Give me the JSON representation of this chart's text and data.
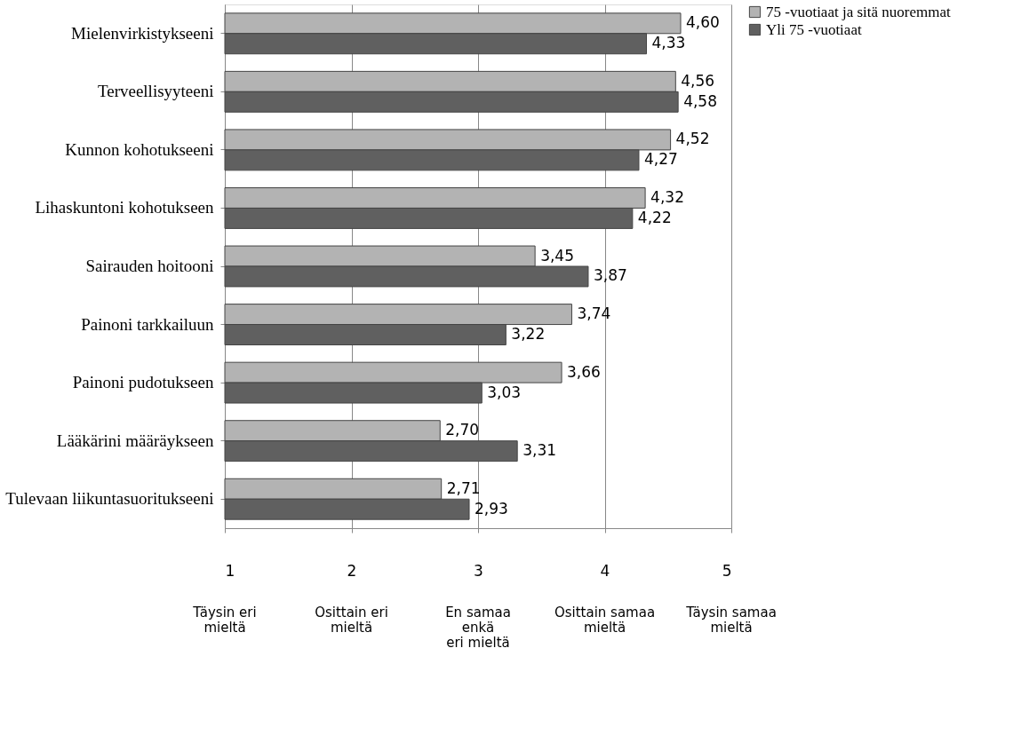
{
  "chart_data": {
    "type": "bar",
    "orientation": "horizontal",
    "categories": [
      "Mielenvirkistykseeni",
      "Terveellisyyteeni",
      "Kunnon kohotukseeni",
      "Lihaskuntoni kohotukseen",
      "Sairauden hoitooni",
      "Painoni tarkkailuun",
      "Painoni pudotukseen",
      "Lääkärini määräykseen",
      "Tulevaan liikuntasuoritukseeni"
    ],
    "series": [
      {
        "name": "75 -vuotiaat ja sitä nuoremmat",
        "color": "#b3b3b3",
        "values": [
          4.6,
          4.56,
          4.52,
          4.32,
          3.45,
          3.74,
          3.66,
          2.7,
          2.71
        ],
        "value_labels": [
          "4,60",
          "4,56",
          "4,52",
          "4,32",
          "3,45",
          "3,74",
          "3,66",
          "2,70",
          "2,71"
        ]
      },
      {
        "name": "Yli 75 -vuotiaat",
        "color": "#606060",
        "values": [
          4.33,
          4.58,
          4.27,
          4.22,
          3.87,
          3.22,
          3.03,
          3.31,
          2.93
        ],
        "value_labels": [
          "4,33",
          "4,58",
          "4,27",
          "4,22",
          "3,87",
          "3,22",
          "3,03",
          "3,31",
          "2,93"
        ]
      }
    ],
    "xlim": [
      1,
      5
    ],
    "xticks": [
      1,
      2,
      3,
      4,
      5
    ],
    "grid": "x",
    "legend": "right",
    "annotations": [
      "Täysin eri\nmieltä",
      "Osittain eri\nmieltä",
      "En samaa\nenkä\neri  mieltä",
      "Osittain samaa\nmieltä",
      "Täysin samaa\nmieltä"
    ]
  }
}
